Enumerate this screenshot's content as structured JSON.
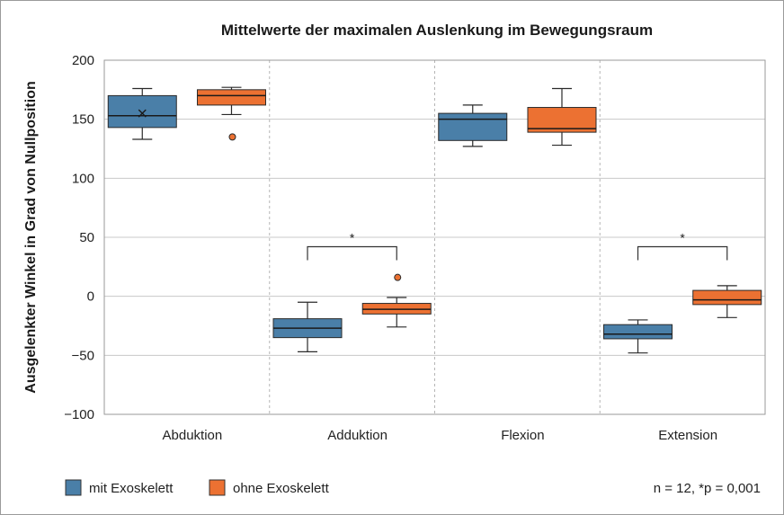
{
  "chart_data": {
    "type": "box",
    "title": "Mittelwerte der maximalen Auslenkung im Bewegungsraum",
    "ylabel": "Ausgelenkter Winkel in Grad von Nullposition",
    "xlabel": "",
    "ylim": [
      -100,
      200
    ],
    "yticks": [
      200,
      150,
      100,
      50,
      0,
      -50,
      -100
    ],
    "ytick_labels": [
      "200",
      "150",
      "100",
      "50",
      "0",
      "−50",
      "−100"
    ],
    "grid": "horizontal",
    "legend_position": "bottom-left",
    "categories": [
      "Abduktion",
      "Adduktion",
      "Flexion",
      "Extension"
    ],
    "series": [
      {
        "name": "mit Exoskelett",
        "color": "#4a7fa8",
        "boxes": [
          {
            "whisker_low": 133,
            "q1": 143,
            "median": 153,
            "q3": 170,
            "whisker_high": 176,
            "mean": 155,
            "outliers": []
          },
          {
            "whisker_low": -47,
            "q1": -35,
            "median": -27,
            "q3": -19,
            "whisker_high": -5,
            "outliers": []
          },
          {
            "whisker_low": 127,
            "q1": 132,
            "median": 150,
            "q3": 155,
            "whisker_high": 162,
            "outliers": []
          },
          {
            "whisker_low": -48,
            "q1": -36,
            "median": -32,
            "q3": -24,
            "whisker_high": -20,
            "outliers": []
          }
        ]
      },
      {
        "name": "ohne Exoskelett",
        "color": "#ec7132",
        "boxes": [
          {
            "whisker_low": 154,
            "q1": 162,
            "median": 170,
            "q3": 175,
            "whisker_high": 177,
            "outliers": [
              135
            ]
          },
          {
            "whisker_low": -26,
            "q1": -15,
            "median": -11,
            "q3": -6,
            "whisker_high": -1,
            "outliers": [
              16
            ]
          },
          {
            "whisker_low": 128,
            "q1": 139,
            "median": 142,
            "q3": 160,
            "whisker_high": 176,
            "outliers": []
          },
          {
            "whisker_low": -18,
            "q1": -7,
            "median": -3,
            "q3": 5,
            "whisker_high": 9,
            "outliers": []
          }
        ]
      }
    ],
    "significance": [
      {
        "category": "Adduktion",
        "label": "*",
        "value": 42
      },
      {
        "category": "Extension",
        "label": "*",
        "value": 42
      }
    ],
    "note": "n = 12, *p = 0,001"
  }
}
